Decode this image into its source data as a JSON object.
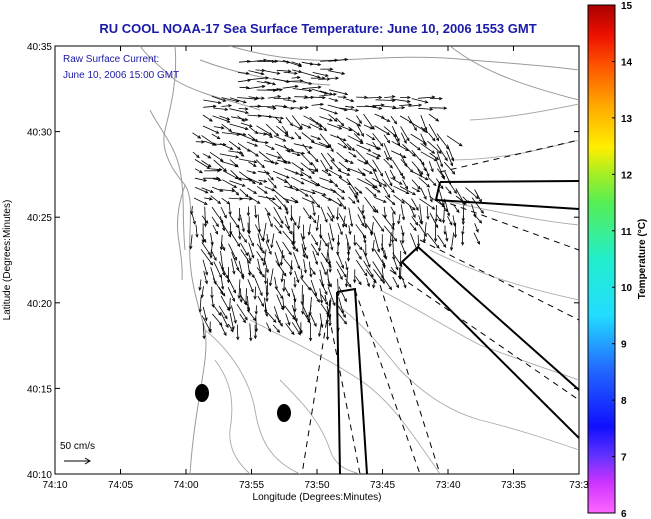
{
  "title": "RU COOL  NOAA-17  Sea Surface Temperature:  June 10, 2006 1553 GMT",
  "legend": {
    "line1": "Raw Surface Current:",
    "line2": "June 10, 2006 15:00 GMT"
  },
  "axes": {
    "xlabel": "Longitude (Degrees:Minutes)",
    "ylabel": "Latitude (Degrees:Minutes)",
    "x_ticks": [
      "74:10",
      "74:05",
      "74:00",
      "73:55",
      "73:50",
      "73:45",
      "73:40",
      "73:35",
      "73:3"
    ],
    "y_ticks": [
      "40:35",
      "40:30",
      "40:25",
      "40:20",
      "40:15",
      "40:10"
    ]
  },
  "colorbar": {
    "label": "Temperature (°C)",
    "ticks": [
      "15",
      "14",
      "13",
      "12",
      "11",
      "10",
      "9",
      "8",
      "7",
      "6"
    ],
    "min": 6,
    "max": 15
  },
  "scale_arrow": {
    "label": "50 cm/s"
  },
  "colors": {
    "title": "#1a1aa8",
    "land_outline": "#9a9a9a",
    "arrows": "#000000"
  }
}
